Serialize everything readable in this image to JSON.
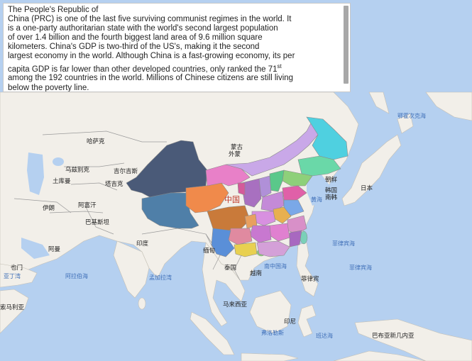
{
  "info": {
    "title": "The People's Republic of",
    "lines": [
      "China (PRC) is one of the last five surviving communist regimes in the world. It",
      "is a one-party authoritarian state with the world's second largest population",
      "of over 1.4 billion and the fourth biggest land area of 9.6 million square",
      "kilometers. China's GDP is two-third of the US's, making it the second",
      "largest economy in the world. Although China is a fast-growing economy, its per"
    ],
    "line6_pre": "capita GDP is far lower than other developed countries, only ranked the 71",
    "line6_sup": "st",
    "lines_end": [
      "among the 192 countries in the world. Millions of Chinese citizens are still living",
      "below the poverty line."
    ]
  },
  "map": {
    "colors": {
      "sea": "#b5d0f0",
      "land": "#f2efe9",
      "border": "#8a8a8a",
      "xinjiang": "#4a5a78",
      "tibet": "#4f7fa8",
      "qinghai": "#f08a4b",
      "inner_mongolia": "#c9a8e8",
      "heilongjiang": "#4fd0e0",
      "jilin": "#6ad8a8",
      "gansu": "#e880c8",
      "sichuan": "#c97a3a",
      "yunnan": "#5a8fd8",
      "guangxi": "#e8d050",
      "guangdong": "#d4a0d8"
    },
    "labels": {
      "china": "中国",
      "kazakhstan": "哈萨克",
      "mongolia_1": "蒙古",
      "mongolia_2": "外蒙",
      "kyrgyzstan": "吉尔吉斯",
      "uzbekistan": "乌兹别克",
      "turkmenistan": "土库曼",
      "tajikistan": "塔吉克",
      "afghanistan": "阿富汗",
      "iran": "伊朗",
      "pakistan": "巴基斯坦",
      "india": "印度",
      "oman": "阿曼",
      "yemen": "也门",
      "somalia": "索马利亚",
      "myanmar": "缅甸",
      "thailand": "泰国",
      "vietnam": "越南",
      "philippines": "菲律宾",
      "malaysia": "马来西亚",
      "indonesia": "印尼",
      "png": "巴布亚新几内亚",
      "north_korea": "朝鲜",
      "south_korea_1": "韩国",
      "south_korea_2": "南韩",
      "japan": "日本",
      "gulf_of_aden": "亚丁湾",
      "arabian_sea": "阿拉伯海",
      "bay_of_bengal": "孟加拉湾",
      "south_china_sea": "南中国海",
      "east_china_sea": "黄海",
      "philippine_sea_1": "菲律宾海",
      "philippine_sea_2": "菲律宾海",
      "okhotsk": "鄂霍次克海",
      "flores": "弗洛勒斯",
      "banda": "班达海"
    }
  }
}
